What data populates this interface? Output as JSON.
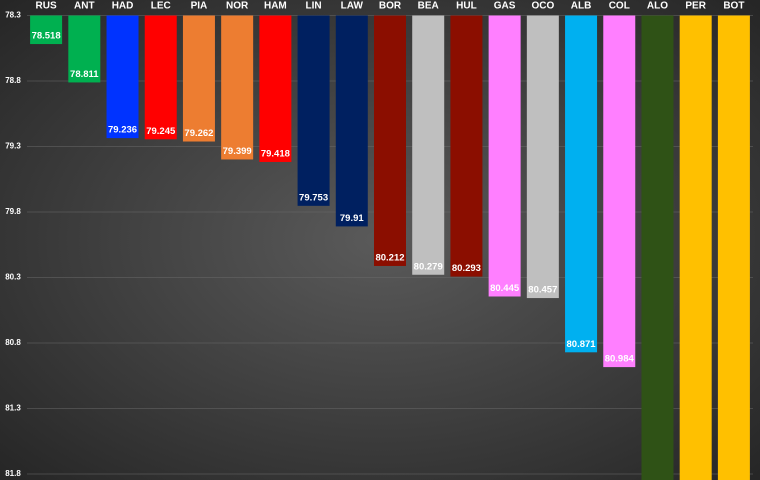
{
  "chart_data": {
    "type": "bar",
    "categories": [
      "RUS",
      "ANT",
      "HAD",
      "LEC",
      "PIA",
      "NOR",
      "HAM",
      "LIN",
      "LAW",
      "BOR",
      "BEA",
      "HUL",
      "GAS",
      "OCO",
      "ALB",
      "COL",
      "ALO",
      "PER",
      "BOT"
    ],
    "values": [
      78.518,
      78.811,
      79.236,
      79.245,
      79.262,
      79.399,
      79.418,
      79.753,
      79.91,
      80.212,
      80.279,
      80.293,
      80.445,
      80.457,
      80.871,
      80.984,
      81.9,
      81.9,
      81.9
    ],
    "colors": [
      "#00b050",
      "#00b050",
      "#0033ff",
      "#ff0000",
      "#ed7d31",
      "#ed7d31",
      "#ff0000",
      "#002060",
      "#002060",
      "#8b0e00",
      "#bfbfbf",
      "#8b0e00",
      "#ff7fff",
      "#bfbfbf",
      "#00b0f0",
      "#ff7fff",
      "#2f5216",
      "#ffc000",
      "#ffc000"
    ],
    "ylim": [
      78.3,
      81.8
    ],
    "y_inverted": true,
    "yticks": [
      78.3,
      78.8,
      79.3,
      79.8,
      80.3,
      80.8,
      81.3,
      81.8
    ],
    "grid": true
  }
}
